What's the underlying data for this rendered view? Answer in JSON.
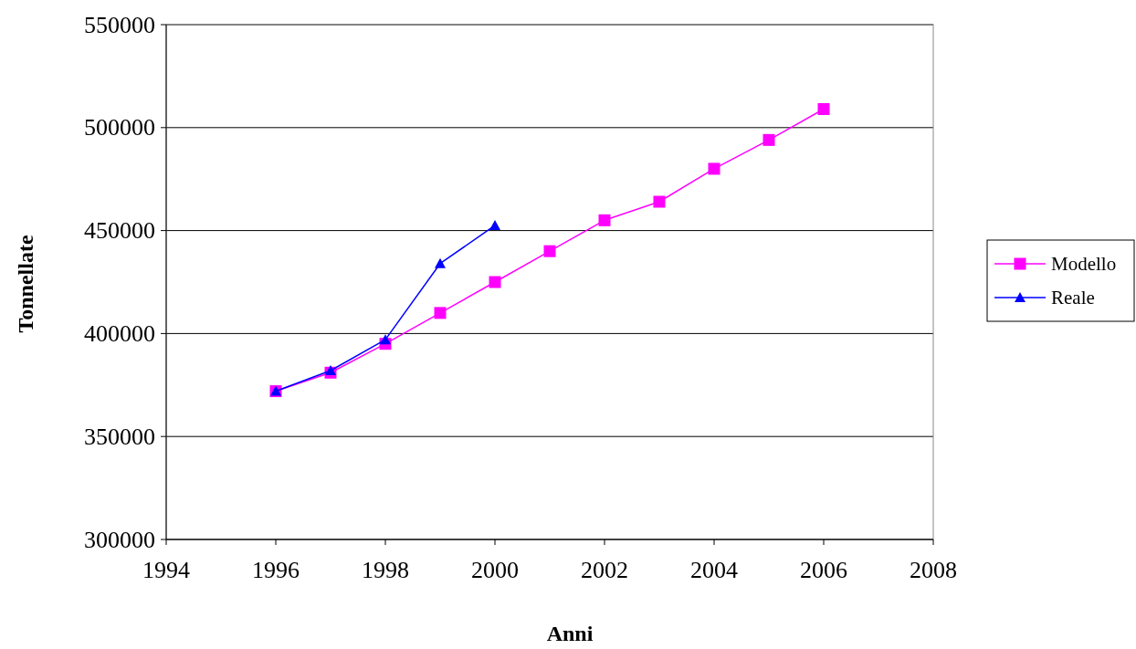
{
  "chart_data": {
    "type": "line",
    "xlabel": "Anni",
    "ylabel": "Tonnellate",
    "xlim": [
      1994,
      2008
    ],
    "xticks": [
      1994,
      1996,
      1998,
      2000,
      2002,
      2004,
      2006,
      2008
    ],
    "ylim": [
      300000,
      550000
    ],
    "yticks": [
      300000,
      350000,
      400000,
      450000,
      500000,
      550000
    ],
    "grid": "y",
    "legend": "right",
    "series": [
      {
        "name": "Modello",
        "color": "#ff00ff",
        "marker": "square",
        "x": [
          1996,
          1997,
          1998,
          1999,
          2000,
          2001,
          2002,
          2003,
          2004,
          2005,
          2006
        ],
        "values": [
          372000,
          381000,
          395000,
          410000,
          425000,
          440000,
          455000,
          464000,
          480000,
          494000,
          509000
        ]
      },
      {
        "name": "Reale",
        "color": "#0000ff",
        "marker": "triangle",
        "x": [
          1996,
          1997,
          1998,
          1999,
          2000
        ],
        "values": [
          372000,
          382000,
          397000,
          434000,
          452500
        ]
      }
    ]
  }
}
